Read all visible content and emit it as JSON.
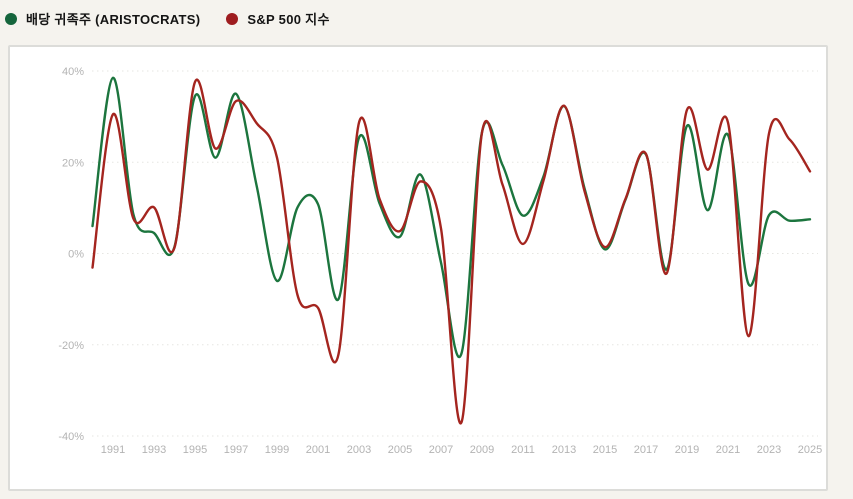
{
  "page": {
    "background_color": "#f5f3ee",
    "card_background": "#ffffff",
    "card_border_color": "#dcdcd9",
    "grid_color": "#e6e6e2",
    "tick_label_color": "#b3b3b3"
  },
  "legend": {
    "items": [
      {
        "label": "배당 귀족주 (ARISTOCRATS)",
        "color": "#15653c"
      },
      {
        "label": "S&P 500 지수",
        "color": "#9e1c1f"
      }
    ]
  },
  "chart_data": {
    "type": "line",
    "title": "",
    "xlabel": "",
    "ylabel": "",
    "x": [
      1990,
      1991,
      1992,
      1993,
      1994,
      1995,
      1996,
      1997,
      1998,
      1999,
      2000,
      2001,
      2002,
      2003,
      2004,
      2005,
      2006,
      2007,
      2008,
      2009,
      2010,
      2011,
      2012,
      2013,
      2014,
      2015,
      2016,
      2017,
      2018,
      2019,
      2020,
      2021,
      2022,
      2023,
      2024,
      2025
    ],
    "series": [
      {
        "name": "배당 귀족주 (ARISTOCRATS)",
        "color": "#1c753e",
        "values": [
          6.0,
          38.5,
          8.5,
          4.5,
          1.5,
          34.5,
          21.0,
          35.0,
          15.0,
          -6.0,
          10.1,
          10.8,
          -10.0,
          25.4,
          11.0,
          3.7,
          17.3,
          -2.0,
          -21.9,
          26.6,
          19.4,
          8.3,
          16.9,
          32.3,
          14.3,
          0.9,
          11.8,
          21.7,
          -3.5,
          28.0,
          9.5,
          26.0,
          -6.7,
          8.4,
          7.2,
          7.5
        ]
      },
      {
        "name": "S&P 500 지수",
        "color": "#a4251f",
        "values": [
          -3.1,
          30.5,
          7.6,
          10.1,
          1.3,
          37.6,
          23.0,
          33.4,
          28.6,
          21.0,
          -9.1,
          -11.9,
          -22.1,
          28.7,
          12.0,
          4.9,
          15.8,
          5.5,
          -37.0,
          26.5,
          15.1,
          2.1,
          16.0,
          32.4,
          13.7,
          1.4,
          12.0,
          21.8,
          -4.4,
          31.5,
          18.4,
          28.7,
          -18.1,
          26.3,
          25.0,
          18.0
        ]
      }
    ],
    "yticks": [
      40,
      20,
      0,
      -20,
      -40
    ],
    "ytick_suffix": "%",
    "xticks": [
      1991,
      1993,
      1995,
      1997,
      1999,
      2001,
      2003,
      2005,
      2007,
      2009,
      2011,
      2013,
      2015,
      2017,
      2019,
      2021,
      2023,
      2025
    ],
    "ylim": [
      -44,
      46
    ],
    "xlim": [
      1990,
      2025
    ],
    "grid": "horizontal-dashed",
    "legend_position": "top-left"
  }
}
